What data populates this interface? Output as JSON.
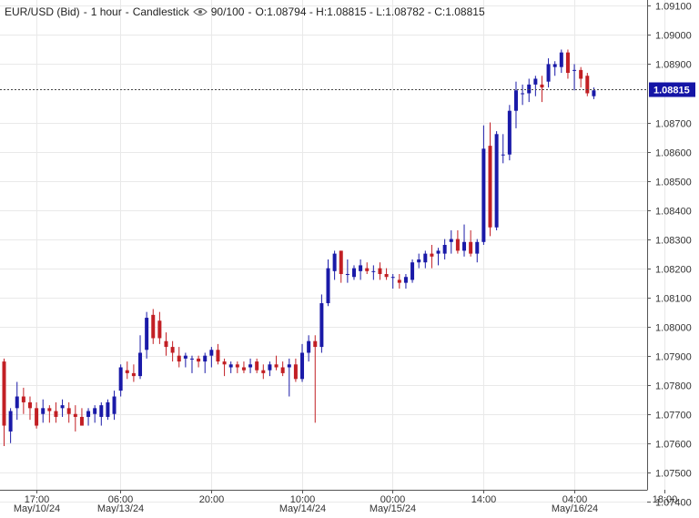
{
  "header": {
    "symbol": "EUR/USD (Bid)",
    "timeframe": "1 hour",
    "chart_style": "Candlestick",
    "zoom": "90/100",
    "ohlc": "O:1.08794 - H:1.08815 - L:1.08782 - C:1.08815"
  },
  "colors": {
    "up": "#1a1aa8",
    "down": "#c21f24",
    "grid": "#e9e9e9",
    "axis": "#555555",
    "price_tag": "#1515a6",
    "price_line": "#444444"
  },
  "chart_data": {
    "type": "candlestick",
    "title": "EUR/USD (Bid) - 1 hour - Candlestick",
    "ylim": [
      1.0744,
      1.0912
    ],
    "y_ticks": [
      "1.09100",
      "1.09000",
      "1.08900",
      "1.08815",
      "1.08700",
      "1.08600",
      "1.08500",
      "1.08400",
      "1.08300",
      "1.08200",
      "1.08100",
      "1.08000",
      "1.07900",
      "1.07800",
      "1.07700",
      "1.07600",
      "1.07500",
      "1.07400"
    ],
    "x_ticks": [
      {
        "time": "17:00",
        "date": "May/10/24",
        "index": 5
      },
      {
        "time": "06:00",
        "date": "May/13/24",
        "index": 18
      },
      {
        "time": "20:00",
        "date": "",
        "index": 32
      },
      {
        "time": "10:00",
        "date": "May/14/24",
        "index": 46
      },
      {
        "time": "00:00",
        "date": "May/15/24",
        "index": 60
      },
      {
        "time": "14:00",
        "date": "",
        "index": 74
      },
      {
        "time": "04:00",
        "date": "May/16/24",
        "index": 88
      },
      {
        "time": "18:00",
        "date": "",
        "index": 102
      }
    ],
    "last_price": "1.08815",
    "grid": true,
    "candles": [
      {
        "o": 1.0788,
        "h": 1.0789,
        "l": 1.0759,
        "c": 1.0766
      },
      {
        "o": 1.0764,
        "h": 1.0772,
        "l": 1.076,
        "c": 1.0771
      },
      {
        "o": 1.0772,
        "h": 1.0781,
        "l": 1.0768,
        "c": 1.0776
      },
      {
        "o": 1.0776,
        "h": 1.0779,
        "l": 1.077,
        "c": 1.0774
      },
      {
        "o": 1.0774,
        "h": 1.0776,
        "l": 1.0768,
        "c": 1.0772
      },
      {
        "o": 1.0772,
        "h": 1.0774,
        "l": 1.0765,
        "c": 1.0766
      },
      {
        "o": 1.077,
        "h": 1.0775,
        "l": 1.0767,
        "c": 1.0772
      },
      {
        "o": 1.0772,
        "h": 1.0773,
        "l": 1.0767,
        "c": 1.0771
      },
      {
        "o": 1.0771,
        "h": 1.0774,
        "l": 1.0767,
        "c": 1.0769
      },
      {
        "o": 1.0772,
        "h": 1.0775,
        "l": 1.0769,
        "c": 1.0773
      },
      {
        "o": 1.0772,
        "h": 1.0774,
        "l": 1.0767,
        "c": 1.077
      },
      {
        "o": 1.077,
        "h": 1.0773,
        "l": 1.0764,
        "c": 1.0769
      },
      {
        "o": 1.0769,
        "h": 1.0772,
        "l": 1.0766,
        "c": 1.0766
      },
      {
        "o": 1.0769,
        "h": 1.0772,
        "l": 1.0766,
        "c": 1.0771
      },
      {
        "o": 1.077,
        "h": 1.0773,
        "l": 1.0767,
        "c": 1.0772
      },
      {
        "o": 1.0769,
        "h": 1.0774,
        "l": 1.0766,
        "c": 1.0773
      },
      {
        "o": 1.0769,
        "h": 1.0775,
        "l": 1.0768,
        "c": 1.0774
      },
      {
        "o": 1.077,
        "h": 1.0778,
        "l": 1.0768,
        "c": 1.0776
      },
      {
        "o": 1.0778,
        "h": 1.0787,
        "l": 1.0776,
        "c": 1.0786
      },
      {
        "o": 1.0785,
        "h": 1.0788,
        "l": 1.0782,
        "c": 1.0784
      },
      {
        "o": 1.0784,
        "h": 1.0787,
        "l": 1.0781,
        "c": 1.0783
      },
      {
        "o": 1.0783,
        "h": 1.0797,
        "l": 1.0782,
        "c": 1.0791
      },
      {
        "o": 1.0792,
        "h": 1.0805,
        "l": 1.0789,
        "c": 1.0803
      },
      {
        "o": 1.0804,
        "h": 1.0806,
        "l": 1.0794,
        "c": 1.0796
      },
      {
        "o": 1.0802,
        "h": 1.0805,
        "l": 1.0794,
        "c": 1.0796
      },
      {
        "o": 1.0795,
        "h": 1.0798,
        "l": 1.079,
        "c": 1.0793
      },
      {
        "o": 1.0793,
        "h": 1.0795,
        "l": 1.0788,
        "c": 1.0791
      },
      {
        "o": 1.079,
        "h": 1.0793,
        "l": 1.0786,
        "c": 1.0788
      },
      {
        "o": 1.0789,
        "h": 1.0791,
        "l": 1.0786,
        "c": 1.079
      },
      {
        "o": 1.0789,
        "h": 1.079,
        "l": 1.0784,
        "c": 1.0789
      },
      {
        "o": 1.0789,
        "h": 1.079,
        "l": 1.0786,
        "c": 1.0788
      },
      {
        "o": 1.0788,
        "h": 1.0791,
        "l": 1.0784,
        "c": 1.079
      },
      {
        "o": 1.079,
        "h": 1.0793,
        "l": 1.0786,
        "c": 1.0792
      },
      {
        "o": 1.0792,
        "h": 1.0794,
        "l": 1.0787,
        "c": 1.0788
      },
      {
        "o": 1.0788,
        "h": 1.0789,
        "l": 1.0783,
        "c": 1.0787
      },
      {
        "o": 1.0786,
        "h": 1.0788,
        "l": 1.0784,
        "c": 1.0787
      },
      {
        "o": 1.0787,
        "h": 1.0788,
        "l": 1.0784,
        "c": 1.0786
      },
      {
        "o": 1.0786,
        "h": 1.0788,
        "l": 1.0784,
        "c": 1.0785
      },
      {
        "o": 1.0786,
        "h": 1.0789,
        "l": 1.0784,
        "c": 1.0787
      },
      {
        "o": 1.0788,
        "h": 1.0789,
        "l": 1.0784,
        "c": 1.0785
      },
      {
        "o": 1.0785,
        "h": 1.0787,
        "l": 1.0782,
        "c": 1.0784
      },
      {
        "o": 1.0785,
        "h": 1.0788,
        "l": 1.0783,
        "c": 1.0787
      },
      {
        "o": 1.0787,
        "h": 1.079,
        "l": 1.0785,
        "c": 1.0786
      },
      {
        "o": 1.0786,
        "h": 1.0788,
        "l": 1.0783,
        "c": 1.0784
      },
      {
        "o": 1.0786,
        "h": 1.0789,
        "l": 1.0776,
        "c": 1.0787
      },
      {
        "o": 1.0787,
        "h": 1.0789,
        "l": 1.0781,
        "c": 1.0782
      },
      {
        "o": 1.0782,
        "h": 1.0794,
        "l": 1.0781,
        "c": 1.0791
      },
      {
        "o": 1.0791,
        "h": 1.0797,
        "l": 1.0788,
        "c": 1.0795
      },
      {
        "o": 1.0795,
        "h": 1.0797,
        "l": 1.0767,
        "c": 1.0793
      },
      {
        "o": 1.0793,
        "h": 1.0811,
        "l": 1.0791,
        "c": 1.0808
      },
      {
        "o": 1.0808,
        "h": 1.0823,
        "l": 1.0807,
        "c": 1.082
      },
      {
        "o": 1.0819,
        "h": 1.0826,
        "l": 1.0816,
        "c": 1.0825
      },
      {
        "o": 1.0826,
        "h": 1.0826,
        "l": 1.0815,
        "c": 1.0818
      },
      {
        "o": 1.0818,
        "h": 1.0823,
        "l": 1.0815,
        "c": 1.0818
      },
      {
        "o": 1.0817,
        "h": 1.0821,
        "l": 1.0816,
        "c": 1.082
      },
      {
        "o": 1.0819,
        "h": 1.0823,
        "l": 1.0816,
        "c": 1.0821
      },
      {
        "o": 1.082,
        "h": 1.0822,
        "l": 1.0818,
        "c": 1.0819
      },
      {
        "o": 1.0819,
        "h": 1.0821,
        "l": 1.0816,
        "c": 1.0819
      },
      {
        "o": 1.082,
        "h": 1.0822,
        "l": 1.0816,
        "c": 1.0818
      },
      {
        "o": 1.0818,
        "h": 1.082,
        "l": 1.0816,
        "c": 1.0817
      },
      {
        "o": 1.0817,
        "h": 1.0818,
        "l": 1.0813,
        "c": 1.0817
      },
      {
        "o": 1.0816,
        "h": 1.0818,
        "l": 1.0813,
        "c": 1.0815
      },
      {
        "o": 1.0815,
        "h": 1.0818,
        "l": 1.0813,
        "c": 1.0817
      },
      {
        "o": 1.0816,
        "h": 1.0823,
        "l": 1.0815,
        "c": 1.0822
      },
      {
        "o": 1.0822,
        "h": 1.0825,
        "l": 1.082,
        "c": 1.0823
      },
      {
        "o": 1.0822,
        "h": 1.0826,
        "l": 1.082,
        "c": 1.0825
      },
      {
        "o": 1.0825,
        "h": 1.0828,
        "l": 1.082,
        "c": 1.0824
      },
      {
        "o": 1.0825,
        "h": 1.0827,
        "l": 1.0821,
        "c": 1.0826
      },
      {
        "o": 1.0825,
        "h": 1.083,
        "l": 1.0823,
        "c": 1.0828
      },
      {
        "o": 1.0829,
        "h": 1.0833,
        "l": 1.0825,
        "c": 1.083
      },
      {
        "o": 1.083,
        "h": 1.0833,
        "l": 1.0825,
        "c": 1.0826
      },
      {
        "o": 1.0826,
        "h": 1.0835,
        "l": 1.0824,
        "c": 1.0829
      },
      {
        "o": 1.0829,
        "h": 1.0833,
        "l": 1.0824,
        "c": 1.0825
      },
      {
        "o": 1.0825,
        "h": 1.083,
        "l": 1.0822,
        "c": 1.0829
      },
      {
        "o": 1.0829,
        "h": 1.0869,
        "l": 1.0828,
        "c": 1.0861
      },
      {
        "o": 1.0862,
        "h": 1.087,
        "l": 1.0831,
        "c": 1.0834
      },
      {
        "o": 1.0834,
        "h": 1.0867,
        "l": 1.0833,
        "c": 1.0866
      },
      {
        "o": 1.0859,
        "h": 1.0866,
        "l": 1.0856,
        "c": 1.0859
      },
      {
        "o": 1.0859,
        "h": 1.0876,
        "l": 1.0857,
        "c": 1.0874
      },
      {
        "o": 1.0874,
        "h": 1.0884,
        "l": 1.0868,
        "c": 1.0881
      },
      {
        "o": 1.088,
        "h": 1.0883,
        "l": 1.0876,
        "c": 1.088
      },
      {
        "o": 1.088,
        "h": 1.0885,
        "l": 1.0877,
        "c": 1.0883
      },
      {
        "o": 1.0883,
        "h": 1.0886,
        "l": 1.0879,
        "c": 1.0885
      },
      {
        "o": 1.0883,
        "h": 1.0886,
        "l": 1.0877,
        "c": 1.0882
      },
      {
        "o": 1.0884,
        "h": 1.0892,
        "l": 1.0882,
        "c": 1.089
      },
      {
        "o": 1.0889,
        "h": 1.0891,
        "l": 1.0886,
        "c": 1.089
      },
      {
        "o": 1.0889,
        "h": 1.0895,
        "l": 1.0887,
        "c": 1.0894
      },
      {
        "o": 1.0894,
        "h": 1.0895,
        "l": 1.0885,
        "c": 1.0887
      },
      {
        "o": 1.0888,
        "h": 1.089,
        "l": 1.0881,
        "c": 1.0888
      },
      {
        "o": 1.0888,
        "h": 1.0889,
        "l": 1.0882,
        "c": 1.0885
      },
      {
        "o": 1.0886,
        "h": 1.0887,
        "l": 1.0879,
        "c": 1.088
      },
      {
        "o": 1.0879,
        "h": 1.0882,
        "l": 1.0878,
        "c": 1.0881
      }
    ]
  }
}
